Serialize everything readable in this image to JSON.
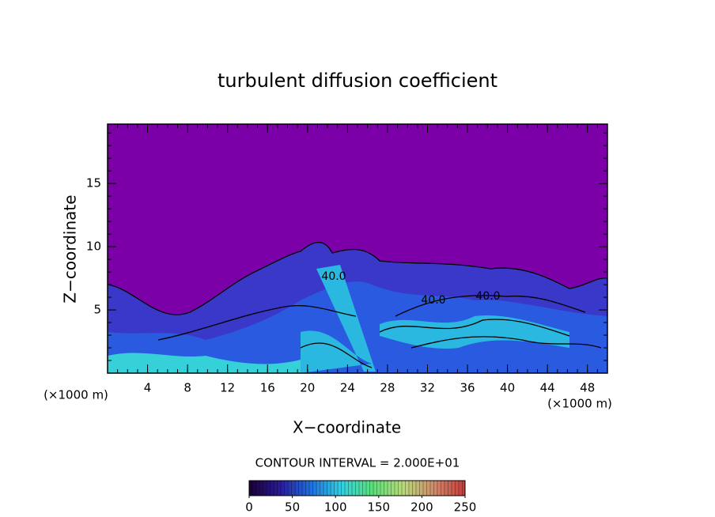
{
  "chart_data": {
    "type": "contour",
    "title": "turbulent diffusion coefficient",
    "x_label": "X−coordinate",
    "y_label": "Z−coordinate",
    "x_unit": "(×1000 m)",
    "y_unit": "(×1000 m)",
    "xlim": [
      0,
      50
    ],
    "xticks": [
      4,
      8,
      12,
      16,
      20,
      24,
      28,
      32,
      36,
      40,
      44,
      48
    ],
    "ylim": [
      0,
      19.7
    ],
    "yticks": [
      5,
      10,
      15
    ],
    "contour_labels": [
      {
        "value": 40,
        "label": "40.0"
      },
      {
        "value": 40,
        "label": "40.0"
      },
      {
        "value": 40,
        "label": "40.0"
      }
    ],
    "contour_interval_text": "CONTOUR INTERVAL = 2.000E+01",
    "colorbar": {
      "lim": [
        0,
        250
      ],
      "ticks": [
        0,
        50,
        100,
        150,
        200,
        250
      ],
      "colors": [
        "#1a0033",
        "#2a1a9a",
        "#1e6fe0",
        "#33d0e0",
        "#5be07a",
        "#b9d97a",
        "#d08a6a",
        "#c83a3a"
      ]
    }
  }
}
